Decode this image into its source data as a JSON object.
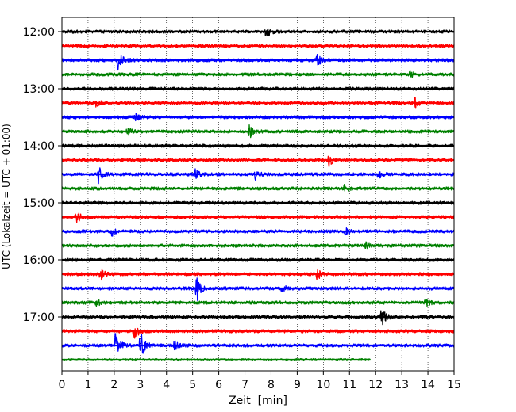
{
  "chart_data": {
    "type": "line",
    "title": "",
    "xlabel": "Zeit  [min]",
    "ylabel": "UTC (Lokalzeit = UTC + 01:00)",
    "xlim": [
      0,
      15
    ],
    "x_ticks": [
      0,
      1,
      2,
      3,
      4,
      5,
      6,
      7,
      8,
      9,
      10,
      11,
      12,
      13,
      14,
      15
    ],
    "y_ticks": [
      "12:00",
      "13:00",
      "14:00",
      "15:00",
      "16:00",
      "17:00"
    ],
    "grid": "vertical dotted lines at each minute",
    "line_colors": [
      "#000000",
      "#ff0000",
      "#0000ff",
      "#008000"
    ],
    "traces": [
      {
        "start": "12:00",
        "color": "#000000",
        "end_min": 15,
        "noise": 0.11,
        "events": [
          {
            "t": 7.8,
            "amp": 0.45
          }
        ]
      },
      {
        "start": "12:15",
        "color": "#ff0000",
        "end_min": 15,
        "noise": 0.11,
        "events": []
      },
      {
        "start": "12:30",
        "color": "#0000ff",
        "end_min": 15,
        "noise": 0.11,
        "events": [
          {
            "t": 2.15,
            "amp": 0.95
          },
          {
            "t": 9.75,
            "amp": 0.5
          }
        ]
      },
      {
        "start": "12:45",
        "color": "#008000",
        "end_min": 15,
        "noise": 0.11,
        "events": [
          {
            "t": 13.3,
            "amp": 0.3
          }
        ]
      },
      {
        "start": "13:00",
        "color": "#000000",
        "end_min": 15,
        "noise": 0.11,
        "events": []
      },
      {
        "start": "13:15",
        "color": "#ff0000",
        "end_min": 15,
        "noise": 0.11,
        "events": [
          {
            "t": 1.3,
            "amp": 0.3
          },
          {
            "t": 13.5,
            "amp": 0.35
          }
        ]
      },
      {
        "start": "13:30",
        "color": "#0000ff",
        "end_min": 15,
        "noise": 0.11,
        "events": [
          {
            "t": 2.8,
            "amp": 0.3
          }
        ]
      },
      {
        "start": "13:45",
        "color": "#008000",
        "end_min": 15,
        "noise": 0.11,
        "events": [
          {
            "t": 7.15,
            "amp": 0.55
          },
          {
            "t": 2.5,
            "amp": 0.25
          }
        ]
      },
      {
        "start": "14:00",
        "color": "#000000",
        "end_min": 15,
        "noise": 0.11,
        "events": []
      },
      {
        "start": "14:15",
        "color": "#ff0000",
        "end_min": 15,
        "noise": 0.11,
        "events": [
          {
            "t": 10.2,
            "amp": 0.45
          }
        ]
      },
      {
        "start": "14:30",
        "color": "#0000ff",
        "end_min": 15,
        "noise": 0.11,
        "events": [
          {
            "t": 1.4,
            "amp": 0.7
          },
          {
            "t": 5.1,
            "amp": 0.35
          },
          {
            "t": 7.4,
            "amp": 0.3
          },
          {
            "t": 12.1,
            "amp": 0.3
          }
        ]
      },
      {
        "start": "14:45",
        "color": "#008000",
        "end_min": 15,
        "noise": 0.11,
        "events": [
          {
            "t": 10.8,
            "amp": 0.3
          }
        ]
      },
      {
        "start": "15:00",
        "color": "#000000",
        "end_min": 15,
        "noise": 0.11,
        "events": []
      },
      {
        "start": "15:15",
        "color": "#ff0000",
        "end_min": 15,
        "noise": 0.11,
        "events": [
          {
            "t": 0.55,
            "amp": 0.55
          }
        ]
      },
      {
        "start": "15:30",
        "color": "#0000ff",
        "end_min": 15,
        "noise": 0.11,
        "events": [
          {
            "t": 1.9,
            "amp": 0.35
          },
          {
            "t": 10.8,
            "amp": 0.3
          }
        ]
      },
      {
        "start": "15:45",
        "color": "#008000",
        "end_min": 15,
        "noise": 0.11,
        "events": [
          {
            "t": 11.6,
            "amp": 0.3
          }
        ]
      },
      {
        "start": "16:00",
        "color": "#000000",
        "end_min": 15,
        "noise": 0.11,
        "events": []
      },
      {
        "start": "16:15",
        "color": "#ff0000",
        "end_min": 15,
        "noise": 0.11,
        "events": [
          {
            "t": 1.45,
            "amp": 0.55
          },
          {
            "t": 9.75,
            "amp": 0.45
          }
        ]
      },
      {
        "start": "16:30",
        "color": "#0000ff",
        "end_min": 15,
        "noise": 0.11,
        "events": [
          {
            "t": 5.15,
            "amp": 1.05
          },
          {
            "t": 8.4,
            "amp": 0.3
          }
        ]
      },
      {
        "start": "16:45",
        "color": "#008000",
        "end_min": 15,
        "noise": 0.11,
        "events": [
          {
            "t": 1.3,
            "amp": 0.3
          },
          {
            "t": 13.9,
            "amp": 0.3
          }
        ]
      },
      {
        "start": "17:00",
        "color": "#000000",
        "end_min": 15,
        "noise": 0.11,
        "events": [
          {
            "t": 12.2,
            "amp": 0.85
          }
        ]
      },
      {
        "start": "17:15",
        "color": "#ff0000",
        "end_min": 15,
        "noise": 0.11,
        "events": [
          {
            "t": 2.75,
            "amp": 0.75
          }
        ]
      },
      {
        "start": "17:30",
        "color": "#0000ff",
        "end_min": 15,
        "noise": 0.11,
        "events": [
          {
            "t": 2.05,
            "amp": 1.1
          },
          {
            "t": 3.0,
            "amp": 1.2
          },
          {
            "t": 4.3,
            "amp": 0.3
          }
        ]
      },
      {
        "start": "17:45",
        "color": "#008000",
        "end_min": 11.8,
        "noise": 0.08,
        "events": []
      }
    ]
  }
}
